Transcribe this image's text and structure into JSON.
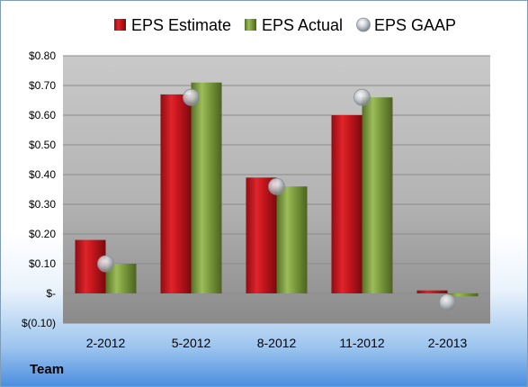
{
  "chart_data": {
    "type": "bar",
    "categories": [
      "2-2012",
      "5-2012",
      "8-2012",
      "11-2012",
      "2-2013"
    ],
    "series": [
      {
        "name": "EPS Estimate",
        "kind": "bar",
        "color": "#c0151b",
        "values": [
          0.18,
          0.67,
          0.39,
          0.6,
          0.01
        ]
      },
      {
        "name": "EPS Actual",
        "kind": "bar",
        "color": "#7a9a3c",
        "values": [
          0.1,
          0.71,
          0.36,
          0.66,
          -0.01
        ]
      },
      {
        "name": "EPS GAAP",
        "kind": "marker",
        "color": "#b8bcc2",
        "values": [
          0.1,
          0.66,
          0.36,
          0.66,
          -0.03
        ]
      }
    ],
    "ylim": [
      -0.1,
      0.8
    ],
    "yticks": [
      {
        "value": 0.8,
        "label": "$0.80"
      },
      {
        "value": 0.7,
        "label": "$0.70"
      },
      {
        "value": 0.6,
        "label": "$0.60"
      },
      {
        "value": 0.5,
        "label": "$0.50"
      },
      {
        "value": 0.4,
        "label": "$0.40"
      },
      {
        "value": 0.3,
        "label": "$0.30"
      },
      {
        "value": 0.2,
        "label": "$0.20"
      },
      {
        "value": 0.1,
        "label": "$0.10"
      },
      {
        "value": 0.0,
        "label": "$-"
      },
      {
        "value": -0.1,
        "label": "$(0.10)"
      }
    ],
    "grid": true,
    "legend_position": "top"
  },
  "footer": {
    "label": "Team"
  }
}
